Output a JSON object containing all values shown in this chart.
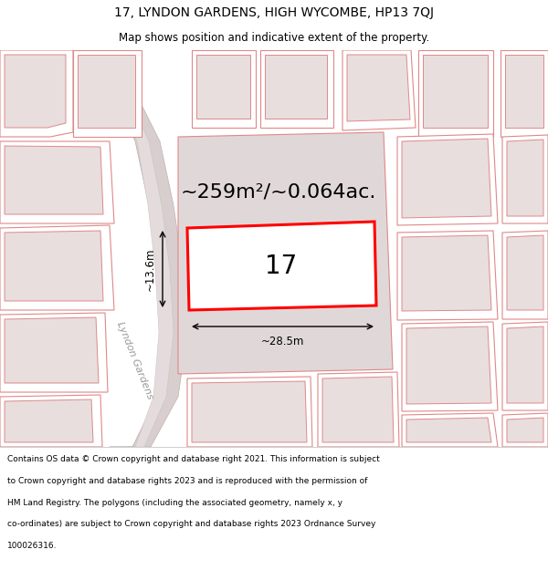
{
  "title": "17, LYNDON GARDENS, HIGH WYCOMBE, HP13 7QJ",
  "subtitle": "Map shows position and indicative extent of the property.",
  "area_text": "~259m²/~0.064ac.",
  "property_number": "17",
  "dim_width": "~28.5m",
  "dim_height": "~13.6m",
  "road_label": "Lyndon Gardens",
  "footer_lines": [
    "Contains OS data © Crown copyright and database right 2021. This information is subject",
    "to Crown copyright and database rights 2023 and is reproduced with the permission of",
    "HM Land Registry. The polygons (including the associated geometry, namely x, y",
    "co-ordinates) are subject to Crown copyright and database rights 2023 Ordnance Survey",
    "100026316."
  ],
  "map_bg": "#f0eaea",
  "plot_fill": "#ffffff",
  "plot_edge": "#ff0000",
  "land_fill": "#e8dede",
  "outline_color": "#e08888",
  "title_fontsize": 10,
  "subtitle_fontsize": 8.5,
  "area_fontsize": 16,
  "prop_num_fontsize": 20,
  "dim_fontsize": 8.5,
  "road_fontsize": 8,
  "footer_fontsize": 6.5
}
